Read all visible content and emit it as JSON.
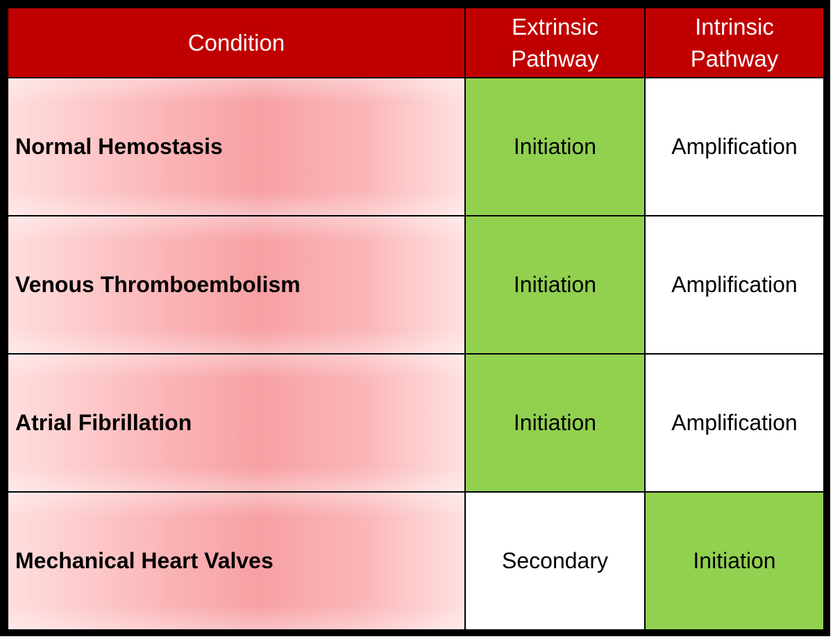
{
  "header": {
    "condition": "Condition",
    "extrinsic": [
      "Extrinsic",
      "Pathway"
    ],
    "intrinsic": [
      "Intrinsic",
      "Pathway"
    ]
  },
  "rows": [
    {
      "condition": "Normal Hemostasis",
      "extrinsic": "Initiation",
      "intrinsic": "Amplification"
    },
    {
      "condition": "Venous Thromboembolism",
      "extrinsic": "Initiation",
      "intrinsic": "Amplification"
    },
    {
      "condition": "Atrial Fibrillation",
      "extrinsic": "Initiation",
      "intrinsic": "Amplification"
    },
    {
      "condition": "Mechanical Heart Valves",
      "extrinsic": "Secondary",
      "intrinsic": "Initiation"
    }
  ],
  "colors": {
    "header": "#c00000",
    "initiation_highlight": "#92d050",
    "condition_fill": "#f7a0a3"
  }
}
